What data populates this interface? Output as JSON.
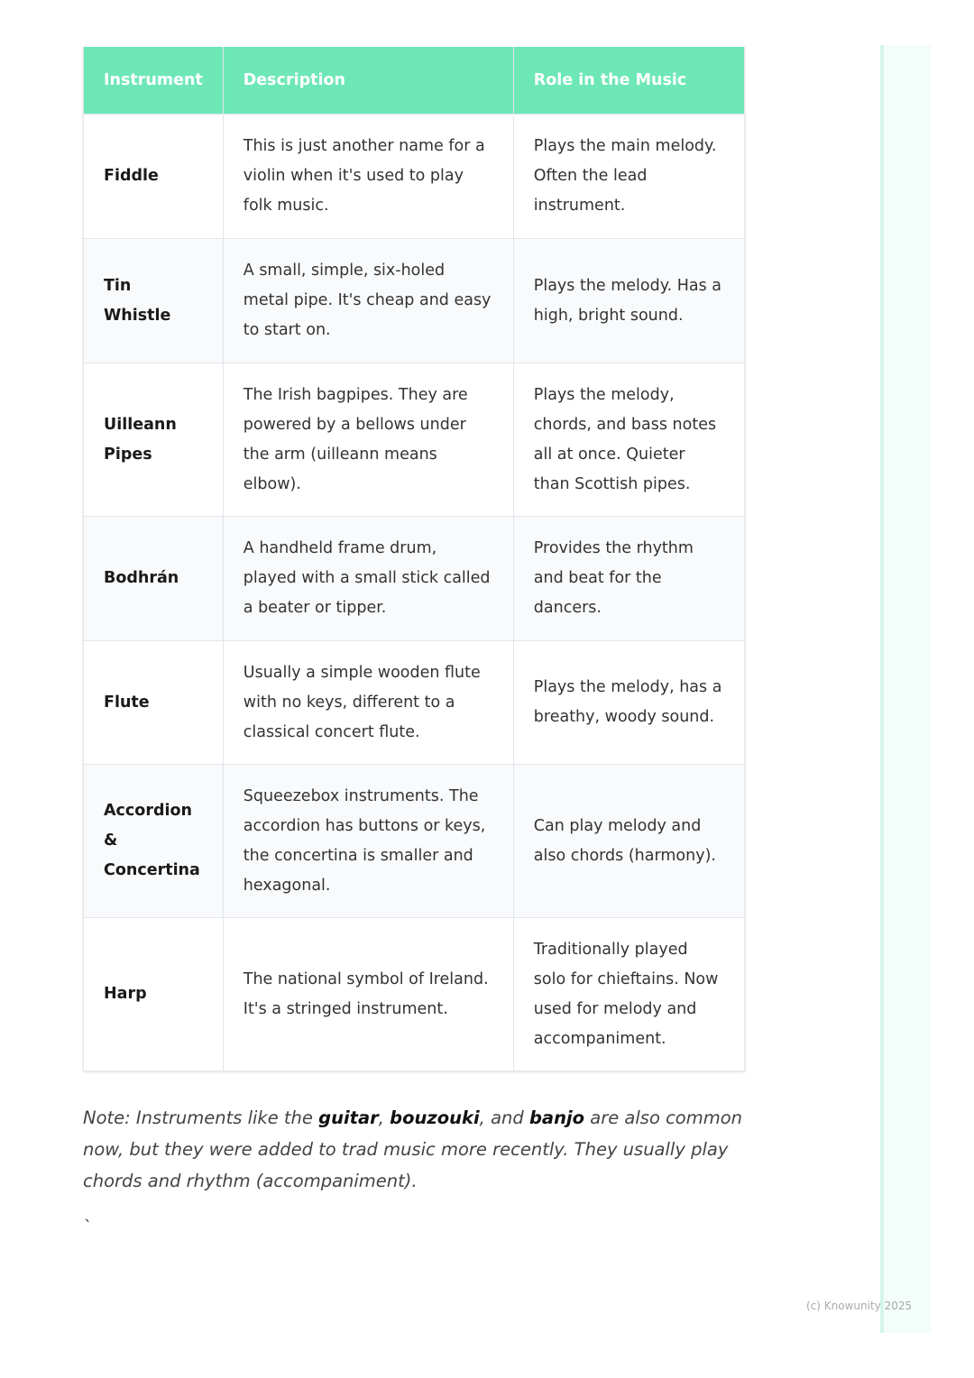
{
  "table": {
    "headers": [
      "Instrument",
      "Description",
      "Role in the Music"
    ],
    "rows": [
      {
        "instrument": "Fiddle",
        "description": "This is just another name for a violin when it's used to play folk music.",
        "role": "Plays the main melody. Often the lead instrument."
      },
      {
        "instrument": "Tin Whistle",
        "description": "A small, simple, six-holed metal pipe. It's cheap and easy to start on.",
        "role": "Plays the melody. Has a high, bright sound."
      },
      {
        "instrument": "Uilleann Pipes",
        "description": "The Irish bagpipes. They are powered by a bellows under the arm (uilleann means elbow).",
        "role": "Plays the melody, chords, and bass notes all at once. Quieter than Scottish pipes."
      },
      {
        "instrument": "Bodhrán",
        "description": "A handheld frame drum, played with a small stick called a beater or tipper.",
        "role": "Provides the rhythm and beat for the dancers."
      },
      {
        "instrument": "Flute",
        "description": "Usually a simple wooden flute with no keys, different to a classical concert flute.",
        "role": "Plays the melody, has a breathy, woody sound."
      },
      {
        "instrument": "Accordion & Concertina",
        "description": "Squeezebox instruments. The accordion has buttons or keys, the concertina is smaller and hexagonal.",
        "role": "Can play melody and also chords (harmony)."
      },
      {
        "instrument": "Harp",
        "description": "The national symbol of Ireland. It's a stringed instrument.",
        "role": "Traditionally played solo for chieftains. Now used for melody and accompaniment."
      }
    ]
  },
  "note": {
    "prefix": "Note: Instruments like the ",
    "b1": "guitar",
    "sep1": ", ",
    "b2": "bouzouki",
    "sep2": ", and ",
    "b3": "banjo",
    "suffix": " are also common now, but they were added to trad music more recently. They usually play chords and rhythm (accompaniment)."
  },
  "stray_mark": "`",
  "footer": "(c) Knowunity 2025",
  "colors": {
    "header": "#6ee7b7",
    "sidebar": "#f3fdf9"
  }
}
